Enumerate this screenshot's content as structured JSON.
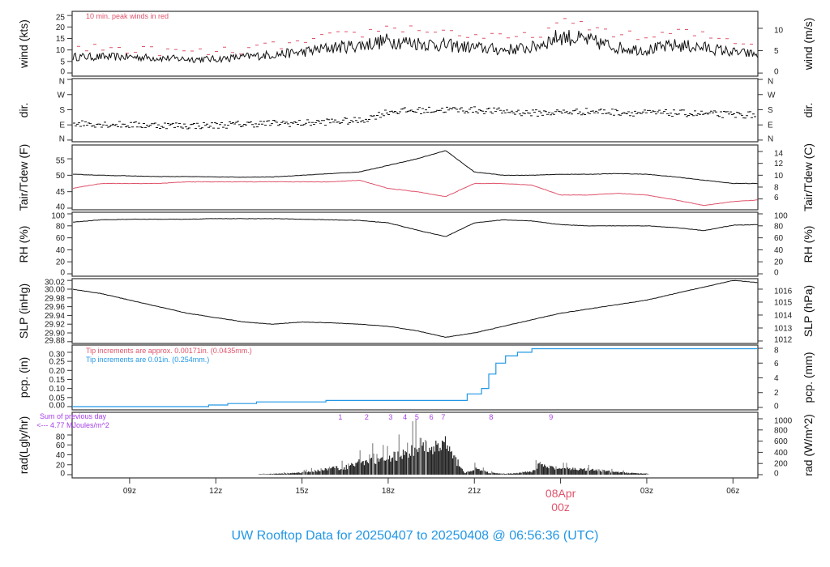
{
  "title": "UW Rooftop Data for 20250407  to  20250408 @ 06:56:36  (UTC)",
  "colors": {
    "black": "#111111",
    "red": "#df536b",
    "blue": "#2297e6",
    "purple": "#a63ee8",
    "title": "#2297e6"
  },
  "time_axis": {
    "xlim": [
      "07 07:00",
      "08 06:52"
    ],
    "ticks": [
      "07 09:00",
      "07 12:00",
      "07 15:00",
      "07 18:00",
      "07 21:00",
      "08 00:00",
      "08 03:00",
      "08 06:00"
    ],
    "tick_labels": [
      "09z",
      "12z",
      "15z",
      "18z",
      "21z",
      "00z",
      "03z",
      "06z"
    ],
    "date_label": "08Apr",
    "date_label_color": "#df536b"
  },
  "hourly_x": [
    "07 07:00",
    "07 08:00",
    "07 09:00",
    "07 10:00",
    "07 11:00",
    "07 12:00",
    "07 13:00",
    "07 14:00",
    "07 15:00",
    "07 16:00",
    "07 17:00",
    "07 18:00",
    "07 19:00",
    "07 20:00",
    "07 21:00",
    "07 22:00",
    "07 23:00",
    "08 00:00",
    "08 01:00",
    "08 02:00",
    "08 03:00",
    "08 04:00",
    "08 05:00",
    "08 06:00",
    "08 06:52"
  ],
  "chart_data": [
    {
      "type": "line",
      "panel": "wind",
      "ylabel": "wind (kts)",
      "ylabel_right": "wind (m/s)",
      "ylim": [
        -1.4,
        26.8
      ],
      "yticks": [
        0,
        5,
        10,
        15,
        20,
        25
      ],
      "ytick_labels": [
        "0",
        "5",
        "10",
        "15",
        "20",
        "25"
      ],
      "ylim_right": [
        -0.7,
        13.8
      ],
      "yticks_right": [
        0,
        5,
        10
      ],
      "ytick_labels_right": [
        "0",
        "5",
        "10"
      ],
      "annotation": "10 min. peak winds in red",
      "series": [
        {
          "key": "wind",
          "color": "#111111",
          "values": [
            7,
            7,
            7,
            6.5,
            6,
            6,
            7,
            8,
            9,
            11,
            12,
            14,
            13,
            12,
            11,
            10,
            11,
            16,
            14,
            11,
            10,
            12,
            11,
            9,
            8
          ]
        },
        {
          "key": "peak",
          "color": "#df536b",
          "values": [
            10,
            11,
            10,
            9.5,
            9,
            9,
            10,
            12,
            13,
            16,
            17,
            20,
            19,
            18,
            16,
            15,
            16,
            22,
            20,
            17,
            15,
            18,
            16,
            14,
            13
          ]
        }
      ]
    },
    {
      "type": "scatter",
      "panel": "dir",
      "ylabel": "dir.",
      "ylabel_right": "dir.",
      "ylim": [
        -10,
        365
      ],
      "yticks": [
        0,
        90,
        180,
        270,
        360
      ],
      "ytick_labels": [
        "N",
        "E",
        "S",
        "W",
        "N"
      ],
      "ylim_right": [
        -10,
        365
      ],
      "yticks_right": [
        0,
        90,
        180,
        270,
        360
      ],
      "ytick_labels_right": [
        "N",
        "E",
        "S",
        "W",
        "N"
      ],
      "series": [
        {
          "key": "dir",
          "color": "#111111",
          "values": [
            100,
            95,
            90,
            88,
            85,
            88,
            95,
            100,
            100,
            110,
            115,
            170,
            175,
            180,
            178,
            170,
            160,
            165,
            170,
            165,
            160,
            160,
            155,
            150,
            150
          ]
        }
      ]
    },
    {
      "type": "line",
      "panel": "temp",
      "ylabel": "Tair/Tdew (F)",
      "ylabel_right": "Tair/Tdew (C)",
      "ylim": [
        39.5,
        59.2
      ],
      "yticks": [
        40,
        45,
        50,
        55
      ],
      "ytick_labels": [
        "40",
        "45",
        "50",
        "55"
      ],
      "ylim_right": [
        4.17,
        15.1
      ],
      "yticks_right": [
        6,
        8,
        10,
        12,
        14
      ],
      "ytick_labels_right": [
        "6",
        "8",
        "10",
        "12",
        "14"
      ],
      "series": [
        {
          "key": "tair",
          "color": "#111111",
          "values": [
            50.3,
            50,
            49.8,
            49.6,
            49.6,
            49.5,
            49.4,
            49.5,
            50,
            50.5,
            51,
            53,
            55,
            57.5,
            51,
            50,
            50,
            50.3,
            50.3,
            50.5,
            50.3,
            49.5,
            48.5,
            47.5,
            47.5
          ]
        },
        {
          "key": "tdew",
          "color": "#df536b",
          "values": [
            46,
            47.5,
            47.5,
            47.5,
            48,
            48,
            48,
            48,
            48,
            48,
            48.5,
            46,
            45,
            43.5,
            47.5,
            47.5,
            47,
            44,
            44,
            44.5,
            44,
            42.5,
            40.8,
            42,
            42.5
          ]
        }
      ]
    },
    {
      "type": "line",
      "panel": "rh",
      "ylabel": "RH (%)",
      "ylabel_right": "RH (%)",
      "ylim": [
        -4,
        102.7
      ],
      "yticks": [
        0,
        20,
        40,
        60,
        80,
        100
      ],
      "ytick_labels": [
        "0",
        "20",
        "40",
        "60",
        "80",
        "100"
      ],
      "ylim_right": [
        -4,
        102.7
      ],
      "yticks_right": [
        0,
        20,
        40,
        60,
        80,
        100
      ],
      "ytick_labels_right": [
        "0",
        "20",
        "40",
        "60",
        "80",
        "100"
      ],
      "series": [
        {
          "key": "rh",
          "color": "#111111",
          "values": [
            86,
            90,
            91,
            91,
            91,
            92,
            92,
            92,
            91,
            90,
            89,
            85,
            73,
            62,
            85,
            90,
            88,
            82,
            80,
            80,
            80,
            77,
            72,
            81,
            82
          ]
        }
      ]
    },
    {
      "type": "line",
      "panel": "slp",
      "ylabel": "SLP (inHg)",
      "ylabel_right": "SLP (hPa)",
      "ylim": [
        29.876,
        30.024
      ],
      "yticks": [
        29.88,
        29.9,
        29.92,
        29.94,
        29.96,
        29.98,
        30.0,
        30.02
      ],
      "ytick_labels": [
        "29.88",
        "29.90",
        "29.92",
        "29.94",
        "29.96",
        "29.98",
        "30.00",
        "30.02"
      ],
      "ylim_right": [
        1011.81,
        1016.81
      ],
      "yticks_right": [
        1012,
        1013,
        1014,
        1015,
        1016
      ],
      "ytick_labels_right": [
        "1012",
        "1013",
        "1014",
        "1015",
        "1016"
      ],
      "series": [
        {
          "key": "slp",
          "color": "#111111",
          "values": [
            30.0,
            29.99,
            29.975,
            29.96,
            29.945,
            29.935,
            29.925,
            29.92,
            29.925,
            29.923,
            29.92,
            29.915,
            29.905,
            29.89,
            29.9,
            29.915,
            29.93,
            29.945,
            29.955,
            29.965,
            29.975,
            29.99,
            30.005,
            30.02,
            30.015
          ]
        }
      ]
    },
    {
      "type": "line",
      "panel": "pcp",
      "ylabel": "pcp. (in)",
      "ylabel_right": "pcp. (mm)",
      "ylim": [
        -0.018,
        0.34
      ],
      "yticks": [
        0,
        0.05,
        0.1,
        0.15,
        0.2,
        0.25,
        0.3
      ],
      "ytick_labels": [
        "0.00",
        "0.05",
        "0.10",
        "0.15",
        "0.20",
        "0.25",
        "0.30"
      ],
      "ylim_right": [
        -0.33,
        8.44
      ],
      "yticks_right": [
        0,
        2,
        4,
        6,
        8
      ],
      "ytick_labels_right": [
        "0",
        "2",
        "4",
        "6",
        "8"
      ],
      "annotations": [
        {
          "text": "Tip increments are approx. 0.00171in. (0.0435mm.)",
          "color": "#df536b"
        },
        {
          "text": "Tip increments are 0.01in. (0.254mm.)",
          "color": "#2297e6"
        }
      ],
      "series": [
        {
          "key": "pcp",
          "color": "#2297e6",
          "step": true,
          "x": [
            "07 07:00",
            "07 11:45",
            "07 12:25",
            "07 13:25",
            "07 15:50",
            "07 20:30",
            "07 20:45",
            "07 21:15",
            "07 21:30",
            "07 21:45",
            "07 22:05",
            "07 22:30",
            "07 23:00",
            "08 06:52"
          ],
          "values": [
            0,
            0.009,
            0.017,
            0.026,
            0.034,
            0.034,
            0.07,
            0.1,
            0.18,
            0.24,
            0.28,
            0.3,
            0.32,
            0.32
          ]
        }
      ]
    },
    {
      "type": "bar",
      "panel": "rad",
      "ylabel": "rad(Lgly/hr)",
      "ylabel_right": "rad (W/m^2)",
      "ylim": [
        -6.5,
        125.7
      ],
      "yticks": [
        0,
        20,
        40,
        60,
        80
      ],
      "ytick_labels": [
        "0",
        "20",
        "40",
        "60",
        "80"
      ],
      "ylim_right": [
        -58,
        1116
      ],
      "yticks_right": [
        0,
        200,
        400,
        600,
        800,
        1000
      ],
      "ytick_labels_right": [
        "0",
        "200",
        "400",
        "600",
        "800",
        "1000"
      ],
      "annotations": [
        {
          "text": "Sum of previous day",
          "color": "#a63ee8"
        },
        {
          "text": "<--- 4.77 MJoules/m^2",
          "color": "#a63ee8"
        }
      ],
      "markers": {
        "labels": [
          "1",
          "2",
          "3",
          "4",
          "5",
          "6",
          "7",
          "8",
          "9"
        ],
        "x": [
          "07 16:20",
          "07 17:15",
          "07 18:05",
          "07 18:35",
          "07 19:00",
          "07 19:30",
          "07 19:55",
          "07 21:35",
          "07 23:40"
        ],
        "color": "#a63ee8"
      },
      "series": [
        {
          "key": "rad",
          "color": "#222222",
          "x": [
            "07 13:30",
            "07 14:00",
            "07 15:00",
            "07 15:30",
            "07 16:00",
            "07 16:30",
            "07 17:00",
            "07 17:30",
            "07 18:00",
            "07 18:30",
            "07 19:00",
            "07 19:30",
            "07 20:00",
            "07 20:15",
            "07 20:30",
            "07 20:40",
            "07 21:00",
            "07 21:30",
            "07 22:00",
            "07 22:30",
            "07 23:00",
            "07 23:15",
            "07 23:30",
            "08 00:00",
            "08 01:00",
            "08 02:00",
            "08 03:00",
            "08 03:05"
          ],
          "values": [
            1,
            2,
            5,
            10,
            15,
            18,
            30,
            40,
            35,
            55,
            70,
            60,
            75,
            40,
            25,
            3,
            15,
            5,
            2,
            4,
            8,
            25,
            18,
            15,
            12,
            6,
            2,
            0
          ]
        }
      ]
    }
  ]
}
